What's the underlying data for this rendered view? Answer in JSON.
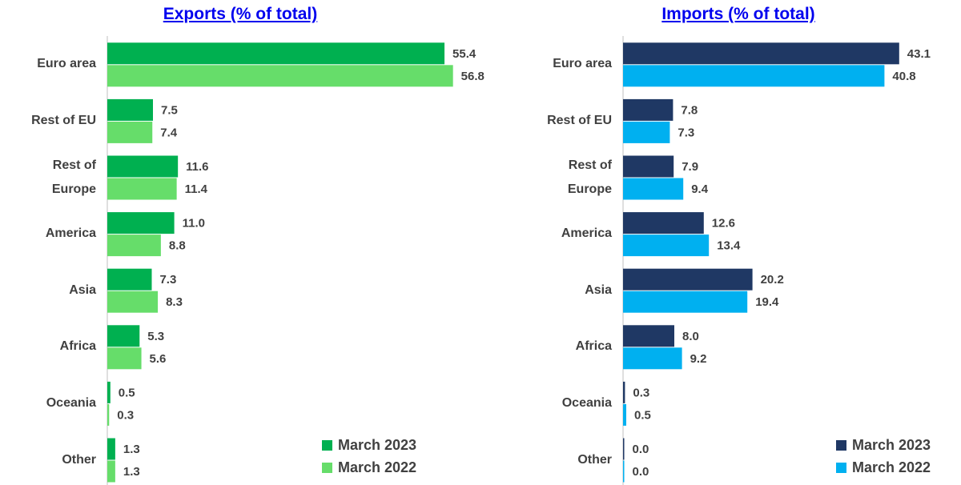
{
  "chart_data": [
    {
      "type": "bar",
      "orientation": "horizontal",
      "title": "Exports (% of total)",
      "categories": [
        "Euro area",
        "Rest of EU",
        "Rest of Europe",
        "America",
        "Asia",
        "Africa",
        "Oceania",
        "Other"
      ],
      "series": [
        {
          "name": "March 2023",
          "color": "#00b050",
          "values": [
            55.4,
            7.5,
            11.6,
            11.0,
            7.3,
            5.3,
            0.5,
            1.3
          ],
          "value_labels": [
            "55.4",
            "7.5",
            "11.6",
            "11.0",
            "7.3",
            "5.3",
            "0.5",
            "1.3"
          ]
        },
        {
          "name": "March 2022",
          "color": "#66dd6a",
          "values": [
            56.8,
            7.4,
            11.4,
            8.8,
            8.3,
            5.6,
            0.3,
            1.3
          ],
          "value_labels": [
            "56.8",
            "7.4",
            "11.4",
            "8.8",
            "8.3",
            "5.6",
            "0.3",
            "1.3"
          ]
        }
      ],
      "xlim": [
        0,
        60
      ],
      "legend": "lower right"
    },
    {
      "type": "bar",
      "orientation": "horizontal",
      "title": "Imports (% of total)",
      "categories": [
        "Euro area",
        "Rest of EU",
        "Rest of Europe",
        "America",
        "Asia",
        "Africa",
        "Oceania",
        "Other"
      ],
      "series": [
        {
          "name": "March 2023",
          "color": "#1f3864",
          "values": [
            43.1,
            7.8,
            7.9,
            12.6,
            20.2,
            8.0,
            0.3,
            0.0
          ],
          "value_labels": [
            "43.1",
            "7.8",
            "7.9",
            "12.6",
            "20.2",
            "8.0",
            "0.3",
            "0.0"
          ]
        },
        {
          "name": "March 2022",
          "color": "#00b0f0",
          "values": [
            40.8,
            7.3,
            9.4,
            13.4,
            19.4,
            9.2,
            0.5,
            0.0
          ],
          "value_labels": [
            "40.8",
            "7.3",
            "9.4",
            "13.4",
            "19.4",
            "9.2",
            "0.5",
            "0.0"
          ]
        }
      ],
      "xlim": [
        0,
        52
      ],
      "legend": "lower right"
    }
  ]
}
